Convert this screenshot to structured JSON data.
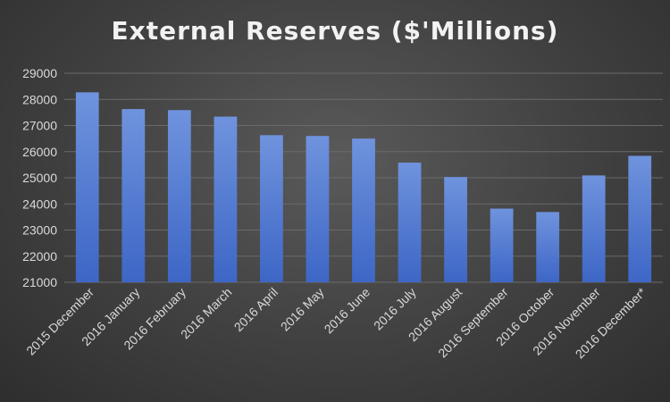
{
  "chart_data": {
    "type": "bar",
    "title": "External Reserves ($'Millions)",
    "xlabel": "",
    "ylabel": "",
    "categories": [
      "2015 December",
      "2016 January",
      "2016 February",
      "2016 March",
      "2016 April",
      "2016 May",
      "2016 June",
      "2016 July",
      "2016 August",
      "2016 September",
      "2016 October",
      "2016 November",
      "2016 December*"
    ],
    "values": [
      28270,
      27630,
      27590,
      27340,
      26630,
      26600,
      26500,
      25580,
      25030,
      23820,
      23690,
      25090,
      25840
    ],
    "ylim": [
      21000,
      29000
    ],
    "yticks": [
      21000,
      22000,
      23000,
      24000,
      25000,
      26000,
      27000,
      28000,
      29000
    ],
    "grid": true,
    "legend": "none",
    "bar_color_top": "#6f93dd",
    "bar_color_bottom": "#3d66c6"
  }
}
